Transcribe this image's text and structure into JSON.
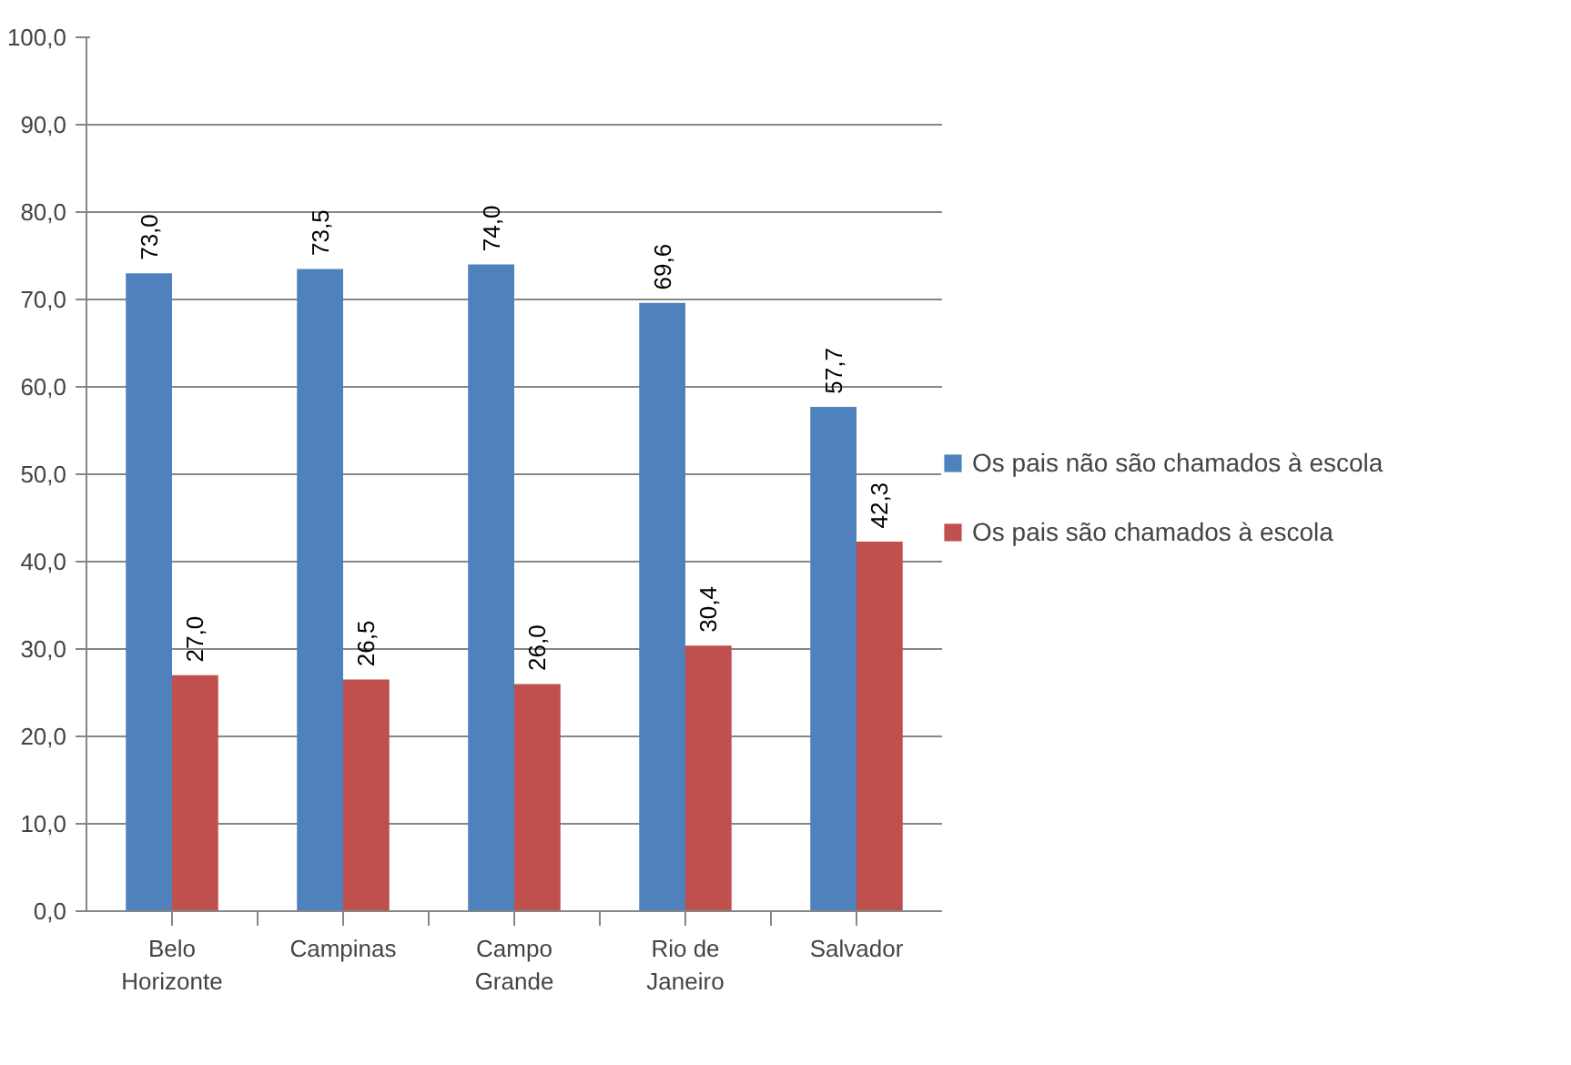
{
  "chart_data": {
    "type": "bar",
    "categories": [
      "Belo Horizonte",
      "Campinas",
      "Campo Grande",
      "Rio de Janeiro",
      "Salvador"
    ],
    "series": [
      {
        "name": "Os pais não são chamados à escola",
        "color": "#4f81bd",
        "values": [
          73.0,
          73.5,
          74.0,
          69.6,
          57.7
        ],
        "value_labels": [
          "73,0",
          "73,5",
          "74,0",
          "69,6",
          "57,7"
        ]
      },
      {
        "name": "Os pais são chamados à escola",
        "color": "#c0504d",
        "values": [
          27.0,
          26.5,
          26.0,
          30.4,
          42.3
        ],
        "value_labels": [
          "27,0",
          "26,5",
          "26,0",
          "30,4",
          "42,3"
        ]
      }
    ],
    "ylim": [
      0,
      100
    ],
    "yticks": [
      {
        "value": 0,
        "label": "0,0"
      },
      {
        "value": 10,
        "label": "10,0"
      },
      {
        "value": 20,
        "label": "20,0"
      },
      {
        "value": 30,
        "label": "30,0"
      },
      {
        "value": 40,
        "label": "40,0"
      },
      {
        "value": 50,
        "label": "50,0"
      },
      {
        "value": 60,
        "label": "60,0"
      },
      {
        "value": 70,
        "label": "70,0"
      },
      {
        "value": 80,
        "label": "80,0"
      },
      {
        "value": 90,
        "label": "90,0"
      },
      {
        "value": 100,
        "label": "100,0"
      }
    ],
    "grid": "y",
    "legend": "right"
  }
}
